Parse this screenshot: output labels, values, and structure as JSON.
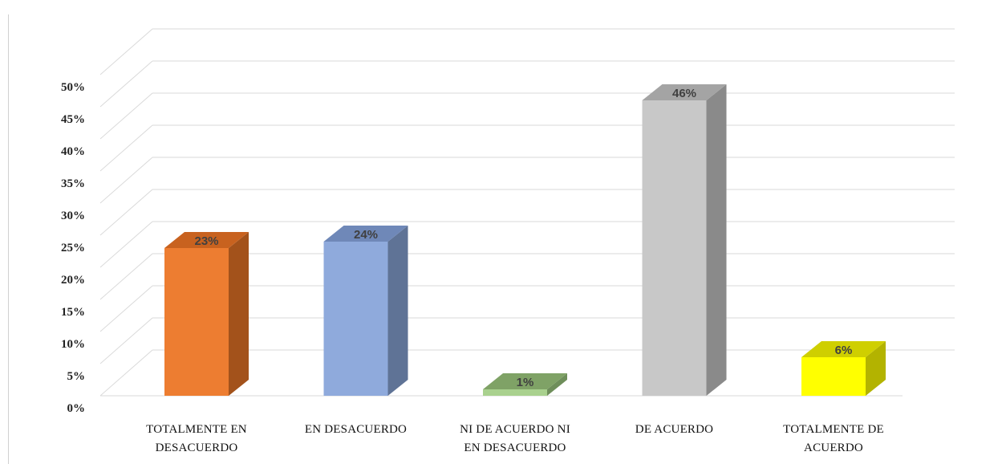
{
  "chart_data": {
    "type": "bar",
    "title": "",
    "xlabel": "",
    "ylabel": "",
    "ylim": [
      0,
      50
    ],
    "yticks": [
      "0%",
      "5%",
      "10%",
      "15%",
      "20%",
      "25%",
      "30%",
      "35%",
      "40%",
      "45%",
      "50%"
    ],
    "grid": true,
    "legend": "none",
    "categories": [
      [
        "TOTALMENTE EN",
        "DESACUERDO"
      ],
      [
        "EN DESACUERDO"
      ],
      [
        "NI DE ACUERDO NI",
        "EN DESACUERDO"
      ],
      [
        "DE ACUERDO"
      ],
      [
        "TOTALMENTE DE",
        "ACUERDO"
      ]
    ],
    "values": [
      23,
      24,
      1,
      46,
      6
    ],
    "data_labels": [
      "23%",
      "24%",
      "1%",
      "46%",
      "6%"
    ],
    "colors": [
      {
        "front": "#ED7D31",
        "side": "#A3521B",
        "top": "#C8621F"
      },
      {
        "front": "#8FAADC",
        "side": "#5F7396",
        "top": "#6F88B8"
      },
      {
        "front": "#A9D18E",
        "side": "#6E8E5A",
        "top": "#7FA266"
      },
      {
        "front": "#C8C8C8",
        "side": "#8A8A8A",
        "top": "#A4A4A4"
      },
      {
        "front": "#FFFF00",
        "side": "#B3B300",
        "top": "#CFCF00"
      }
    ]
  }
}
